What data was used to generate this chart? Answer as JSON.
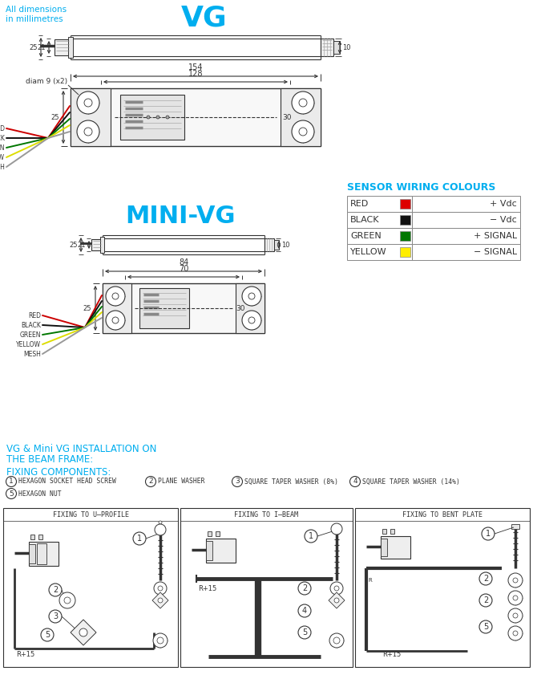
{
  "title": "VG",
  "subtitle": "MINI-VG",
  "header1": "All dimensions",
  "header2": "in millimetres",
  "cyan": "#00AEEF",
  "dark": "#333333",
  "gray": "#888888",
  "lgray": "#CCCCCC",
  "bg": "#FFFFFF",
  "wiring_title": "SENSOR WIRING COLOURS",
  "wiring_rows": [
    {
      "label": "RED",
      "color": "#DD0000",
      "signal": "+ Vdc"
    },
    {
      "label": "BLACK",
      "color": "#111111",
      "signal": "− Vdc"
    },
    {
      "label": "GREEN",
      "color": "#007700",
      "signal": "+ SIGNAL"
    },
    {
      "label": "YELLOW",
      "color": "#FFEE00",
      "signal": "− SIGNAL"
    }
  ],
  "install_line1": "VG & Mini VG INSTALLATION ON",
  "install_line2": "THE BEAM FRAME:",
  "fixing_title": "FIXING COMPONENTS:",
  "components": [
    {
      "num": "1",
      "desc": "HEXAGON SOCKET HEAD SCREW"
    },
    {
      "num": "2",
      "desc": "PLANE WASHER"
    },
    {
      "num": "3",
      "desc": "SQUARE TAPER WASHER (8%)"
    },
    {
      "num": "4",
      "desc": "SQUARE TAPER WASHER (14%)"
    },
    {
      "num": "5",
      "desc": "HEXAGON NUT"
    }
  ],
  "panel_titles": [
    "FIXING TO U–PROFILE",
    "FIXING TO I–BEAM",
    "FIXING TO BENT PLATE"
  ],
  "wire_labels": [
    "RED",
    "BLACK",
    "GREEN",
    "YELLOW",
    "MESH"
  ],
  "wire_colors": [
    "#CC0000",
    "#111111",
    "#007700",
    "#DDDD00",
    "#999999"
  ]
}
